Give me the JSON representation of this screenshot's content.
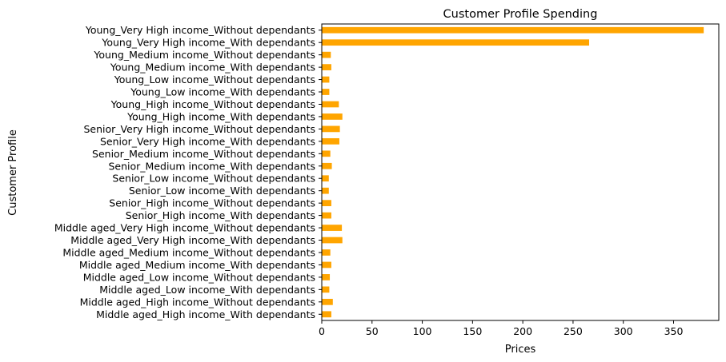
{
  "chart_data": {
    "type": "bar",
    "orientation": "horizontal",
    "title": "Customer Profile Spending",
    "xlabel": "Prices",
    "ylabel": "Customer Profile",
    "xlim": [
      0,
      395
    ],
    "xticks": [
      0,
      50,
      100,
      150,
      200,
      250,
      300,
      350
    ],
    "grid": false,
    "legend": "none",
    "bar_color": "#ffa500",
    "categories": [
      "Middle aged_High income_With dependants",
      "Middle aged_High income_Without dependants",
      "Middle aged_Low income_With dependants",
      "Middle aged_Low income_Without dependants",
      "Middle aged_Medium income_With dependants",
      "Middle aged_Medium income_Without dependants",
      "Middle aged_Very High income_With dependants",
      "Middle aged_Very High income_Without dependants",
      "Senior_High income_With dependants",
      "Senior_High income_Without dependants",
      "Senior_Low income_With dependants",
      "Senior_Low income_Without dependants",
      "Senior_Medium income_With dependants",
      "Senior_Medium income_Without dependants",
      "Senior_Very High income_With dependants",
      "Senior_Very High income_Without dependants",
      "Young_High income_With dependants",
      "Young_High income_Without dependants",
      "Young_Low income_With dependants",
      "Young_Low income_Without dependants",
      "Young_Medium income_With dependants",
      "Young_Medium income_Without dependants",
      "Young_Very High income_With dependants",
      "Young_Very High income_Without dependants"
    ],
    "values": [
      9.5,
      11,
      7.5,
      8,
      9.5,
      8.5,
      20.5,
      20,
      9.5,
      9.5,
      7,
      7,
      10,
      8.5,
      17.5,
      18,
      20.5,
      17,
      7.5,
      7.5,
      9.5,
      9,
      266,
      380
    ]
  }
}
